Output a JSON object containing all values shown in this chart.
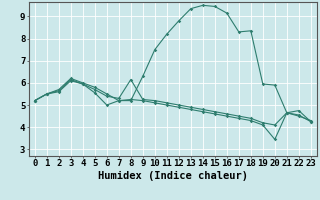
{
  "title": "",
  "xlabel": "Humidex (Indice chaleur)",
  "bg_color": "#cce8ea",
  "line_color": "#2e7d6e",
  "grid_color": "#ffffff",
  "xlim": [
    -0.5,
    23.5
  ],
  "ylim": [
    2.7,
    9.65
  ],
  "xticks": [
    0,
    1,
    2,
    3,
    4,
    5,
    6,
    7,
    8,
    9,
    10,
    11,
    12,
    13,
    14,
    15,
    16,
    17,
    18,
    19,
    20,
    21,
    22,
    23
  ],
  "yticks": [
    3,
    4,
    5,
    6,
    7,
    8,
    9
  ],
  "line1_x": [
    0,
    1,
    2,
    3,
    4,
    5,
    6,
    7,
    8,
    9,
    10,
    11,
    12,
    13,
    14,
    15,
    16,
    17,
    18,
    19,
    20,
    21,
    22,
    23
  ],
  "line1_y": [
    5.2,
    5.5,
    5.7,
    6.2,
    6.0,
    5.8,
    5.5,
    5.2,
    5.2,
    6.3,
    7.5,
    8.2,
    8.8,
    9.35,
    9.5,
    9.45,
    9.15,
    8.3,
    8.35,
    5.95,
    5.9,
    4.65,
    4.5,
    4.3
  ],
  "line2_x": [
    0,
    1,
    2,
    3,
    4,
    5,
    6,
    7,
    8,
    9,
    10,
    11,
    12,
    13,
    14,
    15,
    16,
    17,
    18,
    19,
    20,
    21,
    22,
    23
  ],
  "line2_y": [
    5.2,
    5.5,
    5.65,
    6.15,
    5.95,
    5.7,
    5.4,
    5.3,
    6.15,
    5.25,
    5.2,
    5.1,
    5.0,
    4.9,
    4.8,
    4.7,
    4.6,
    4.5,
    4.4,
    4.2,
    4.1,
    4.65,
    4.55,
    4.25
  ],
  "line3_x": [
    0,
    1,
    2,
    3,
    4,
    5,
    6,
    7,
    8,
    9,
    10,
    11,
    12,
    13,
    14,
    15,
    16,
    17,
    18,
    19,
    20,
    21,
    22,
    23
  ],
  "line3_y": [
    5.2,
    5.5,
    5.6,
    6.1,
    5.95,
    5.55,
    5.0,
    5.2,
    5.25,
    5.2,
    5.1,
    5.0,
    4.9,
    4.8,
    4.7,
    4.6,
    4.5,
    4.4,
    4.3,
    4.1,
    3.45,
    4.65,
    4.75,
    4.25
  ],
  "xlabel_fontsize": 7.5,
  "tick_fontsize": 6.5
}
